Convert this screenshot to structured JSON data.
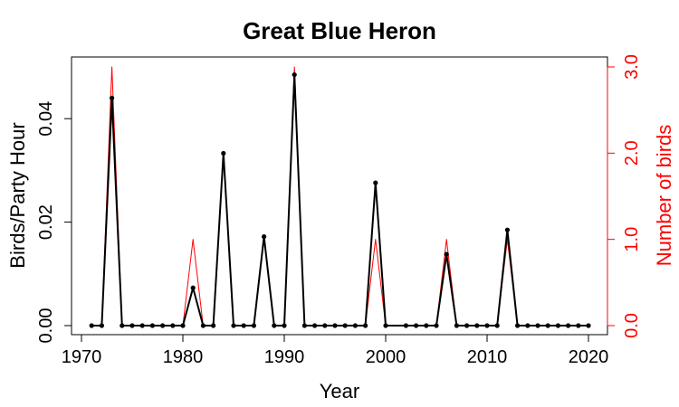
{
  "chart_data": {
    "type": "line",
    "title": "Great Blue Heron",
    "xlabel": "Year",
    "ylabel_left": "Birds/Party Hour",
    "ylabel_right": "Number of birds",
    "xlim": [
      1970,
      2020
    ],
    "ylim_left": [
      0,
      0.05
    ],
    "ylim_right": [
      0,
      3.0
    ],
    "x_ticks": [
      1970,
      1980,
      1990,
      2000,
      2010,
      2020
    ],
    "y_left_ticks": [
      "0.00",
      "0.02",
      "0.04"
    ],
    "y_right_ticks": [
      "0.0",
      "1.0",
      "2.0",
      "3.0"
    ],
    "grid": false,
    "colors": {
      "left_series": "#000000",
      "right_series": "#ff0000",
      "axis": "#000000",
      "right_axis": "#ff0000"
    },
    "x": [
      1971,
      1972,
      1973,
      1974,
      1975,
      1976,
      1977,
      1978,
      1979,
      1980,
      1981,
      1982,
      1983,
      1984,
      1985,
      1986,
      1987,
      1988,
      1989,
      1990,
      1991,
      1992,
      1993,
      1994,
      1995,
      1996,
      1997,
      1998,
      1999,
      2000,
      2002,
      2003,
      2004,
      2005,
      2006,
      2007,
      2008,
      2009,
      2010,
      2011,
      2012,
      2013,
      2014,
      2015,
      2016,
      2017,
      2018,
      2019,
      2020
    ],
    "series": [
      {
        "axis": "left",
        "values": [
          0,
          0,
          0.044,
          0,
          0,
          0,
          0,
          0,
          0,
          0,
          0.0073,
          0,
          0,
          0.0333,
          0,
          0,
          0,
          0.0172,
          0,
          0,
          0.0485,
          0,
          0,
          0,
          0,
          0,
          0,
          0,
          0.0276,
          0,
          0,
          0,
          0,
          0,
          0.0138,
          0,
          0,
          0,
          0,
          0,
          0.0185,
          0,
          0,
          0,
          0,
          0,
          0,
          0,
          0
        ]
      },
      {
        "axis": "right",
        "values": [
          0,
          0,
          3,
          0,
          0,
          0,
          0,
          0,
          0,
          0,
          1,
          0,
          0,
          2,
          0,
          0,
          0,
          1,
          0,
          0,
          3,
          0,
          0,
          0,
          0,
          0,
          0,
          0,
          1,
          0,
          0,
          0,
          0,
          0,
          1,
          0,
          0,
          0,
          0,
          0,
          1,
          0,
          0,
          0,
          0,
          0,
          0,
          0,
          0
        ]
      }
    ]
  }
}
